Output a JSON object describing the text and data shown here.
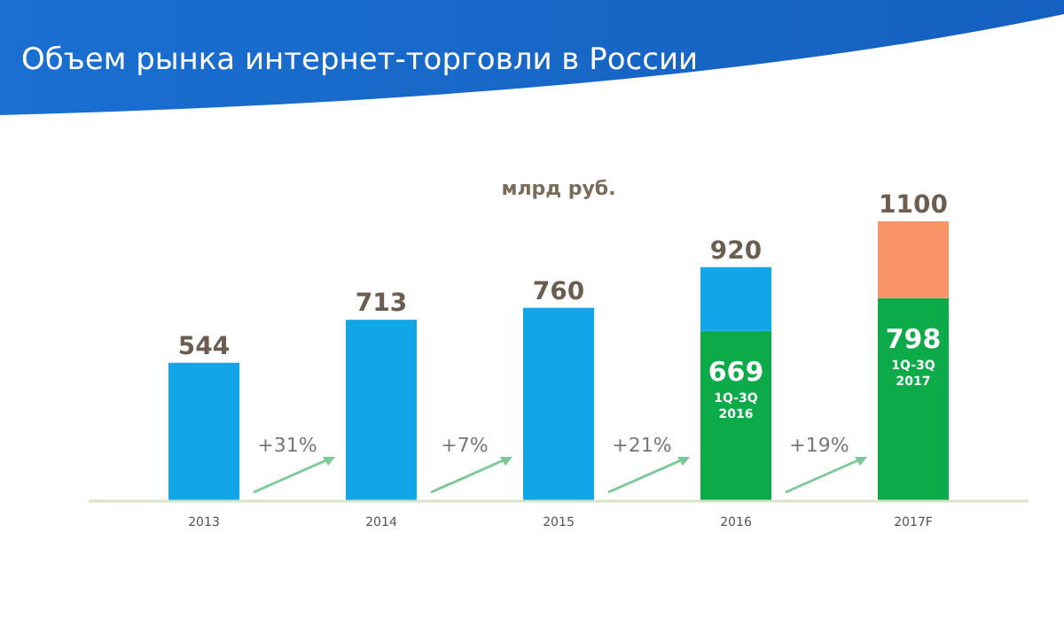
{
  "chart_data": {
    "type": "bar",
    "title": "Объем рынка интернет-торговли в России",
    "ylabel": "млрд руб.",
    "categories": [
      "2013",
      "2014",
      "2015",
      "2016",
      "2017F"
    ],
    "stacked": true,
    "series": [
      {
        "color": "#0daa4a",
        "values": [
          null,
          null,
          null,
          669,
          798
        ],
        "value_labels": [
          null,
          null,
          null,
          "669",
          "798"
        ]
      },
      {
        "color": "#12a5e8",
        "values": [
          544,
          713,
          760,
          251,
          null
        ]
      },
      {
        "color": "#f99468",
        "values": [
          null,
          null,
          null,
          null,
          302
        ]
      }
    ],
    "totals": [
      "544",
      "713",
      "760",
      "920",
      "1100"
    ],
    "annotations": [
      "+31%",
      "+7%",
      "+21%",
      "+19%",
      "1Q-3Q 2016",
      "1Q-3Q 2017"
    ]
  }
}
